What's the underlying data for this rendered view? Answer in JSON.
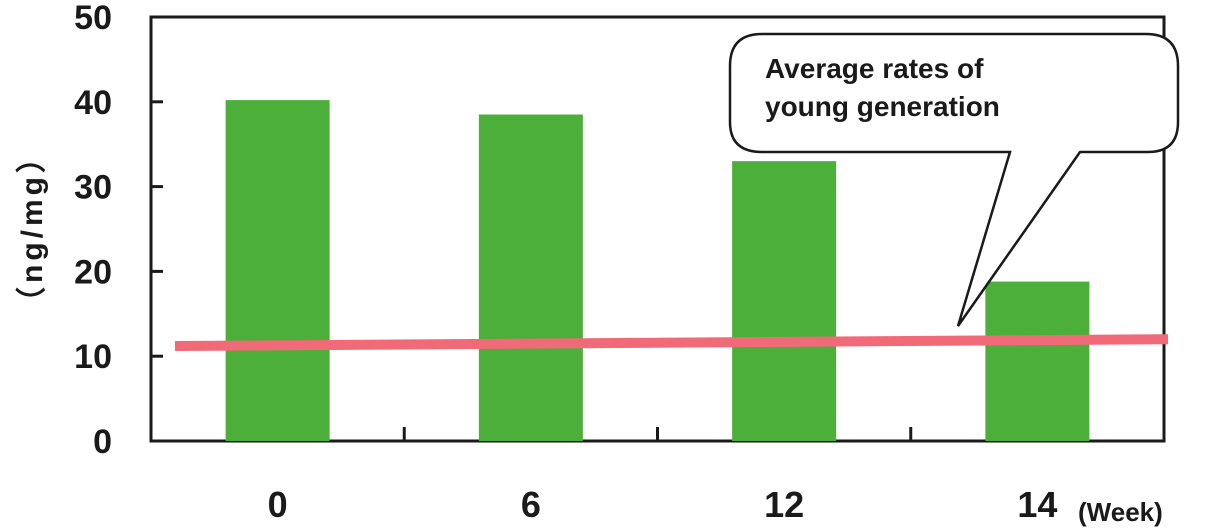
{
  "chart_data": {
    "type": "bar",
    "categories": [
      "0",
      "6",
      "12",
      "14"
    ],
    "values": [
      40.2,
      38.5,
      33.0,
      18.8
    ],
    "ylim": [
      0,
      50
    ],
    "yticks": [
      "0",
      "10",
      "20",
      "30",
      "40",
      "50"
    ],
    "ylabel": "（ng/mg）",
    "xunit": "(Week)",
    "reference_line": {
      "value_start": 11.2,
      "value_end": 12.0
    },
    "annotation": {
      "line1": "Average rates of",
      "line2": "young generation"
    },
    "bar_color": "#4caf3a",
    "line_color": "#f06a78",
    "grid": false
  }
}
